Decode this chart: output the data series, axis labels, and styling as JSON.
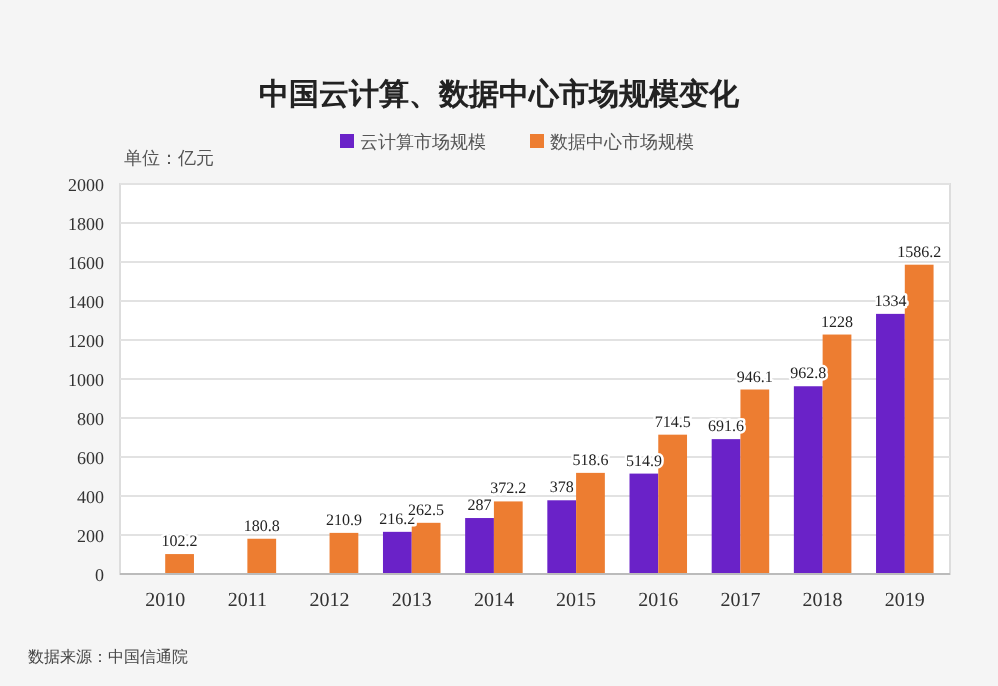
{
  "chart_data": {
    "type": "bar",
    "title": "中国云计算、数据中心市场规模变化",
    "ylabel": "单位：亿元",
    "categories": [
      "2010",
      "2011",
      "2012",
      "2013",
      "2014",
      "2015",
      "2016",
      "2017",
      "2018",
      "2019"
    ],
    "series": [
      {
        "name": "云计算市场规模",
        "color": "#6a22c8",
        "values": [
          null,
          null,
          null,
          216.2,
          287,
          378,
          514.9,
          691.6,
          962.8,
          1334
        ]
      },
      {
        "name": "数据中心市场规模",
        "color": "#ed7d31",
        "values": [
          102.2,
          180.8,
          210.9,
          262.5,
          372.2,
          518.6,
          714.5,
          946.1,
          1228.0,
          1586.2
        ]
      }
    ],
    "ylim": [
      0,
      2000
    ],
    "yticks": [
      0,
      200,
      400,
      600,
      800,
      1000,
      1200,
      1400,
      1600,
      1800,
      2000
    ],
    "grid": "y",
    "legend": "top",
    "data_labels": true,
    "annotations": [
      "数据来源：中国信通院"
    ]
  }
}
